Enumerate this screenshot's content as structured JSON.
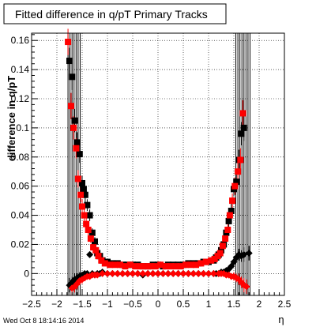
{
  "chart_data": {
    "type": "scatter",
    "title": "Fitted difference in q/pT  Primary Tracks",
    "xlabel": "η",
    "ylabel": "difference in q/pT",
    "timestamp": "Wed Oct  8 18:14:16 2014",
    "xlim": [
      -2.5,
      2.5
    ],
    "ylim": [
      -0.015,
      0.165
    ],
    "x_ticks": [
      -2.5,
      -2,
      -1.5,
      -1,
      -0.5,
      0,
      0.5,
      1,
      1.5,
      2,
      2.5
    ],
    "x_tick_labels": [
      "−2.5",
      "−2",
      "−1.5",
      "−1",
      "−0.5",
      "0",
      "0.5",
      "1",
      "1.5",
      "2",
      "2.5"
    ],
    "y_ticks": [
      0,
      0.02,
      0.04,
      0.06,
      0.08,
      0.1,
      0.12,
      0.14,
      0.16
    ],
    "y_tick_labels": [
      "0",
      "0.02",
      "0.04",
      "0.06",
      "0.08",
      "0.1",
      "0.12",
      "0.14",
      "0.16"
    ],
    "grid": true,
    "series": [
      {
        "color": "#000000",
        "marker": "square",
        "x": [
          -1.75,
          -1.7,
          -1.65,
          -1.6,
          -1.55,
          -1.5,
          -1.47,
          -1.44,
          -1.4,
          -1.35,
          -1.3,
          -1.25,
          -1.2,
          -1.15,
          -1.1,
          -1.0,
          -0.9,
          -0.8,
          -0.7,
          -0.6,
          -0.5,
          -0.4,
          -0.3,
          -0.2,
          -0.1,
          0.0,
          0.1,
          0.2,
          0.3,
          0.4,
          0.5,
          0.6,
          0.7,
          0.8,
          0.9,
          1.0,
          1.1,
          1.15,
          1.2,
          1.25,
          1.3,
          1.35,
          1.4,
          1.45,
          1.5,
          1.55,
          1.6,
          1.65,
          1.7
        ],
        "y": [
          0.146,
          0.135,
          0.105,
          0.09,
          0.082,
          0.062,
          0.058,
          0.054,
          0.047,
          0.04,
          0.028,
          0.022,
          0.014,
          0.012,
          0.009,
          0.008,
          0.007,
          0.007,
          0.006,
          0.006,
          0.006,
          0.006,
          0.005,
          0.005,
          0.006,
          0.006,
          0.005,
          0.006,
          0.006,
          0.006,
          0.006,
          0.007,
          0.007,
          0.007,
          0.008,
          0.008,
          0.009,
          0.011,
          0.013,
          0.016,
          0.02,
          0.028,
          0.036,
          0.043,
          0.058,
          0.063,
          0.078,
          0.096,
          0.1
        ],
        "errors": [
          0.009,
          0.009,
          0.008,
          0.007,
          0.006,
          0.005,
          0.005,
          0.005,
          0.004,
          0.004,
          0.003,
          0.003,
          0.002,
          0.002,
          0.0015,
          0.001,
          0.001,
          0.001,
          0.001,
          0.001,
          0.001,
          0.001,
          0.001,
          0.001,
          0.001,
          0.001,
          0.001,
          0.001,
          0.001,
          0.001,
          0.001,
          0.001,
          0.001,
          0.001,
          0.001,
          0.001,
          0.0015,
          0.002,
          0.002,
          0.003,
          0.003,
          0.004,
          0.004,
          0.005,
          0.005,
          0.006,
          0.007,
          0.008,
          0.009
        ]
      },
      {
        "color": "#ff0000",
        "marker": "square",
        "x": [
          -1.78,
          -1.72,
          -1.67,
          -1.62,
          -1.58,
          -1.53,
          -1.5,
          -1.46,
          -1.42,
          -1.38,
          -1.33,
          -1.28,
          -1.23,
          -1.18,
          -1.12,
          -1.05,
          -0.95,
          -0.85,
          -0.75,
          -0.65,
          -0.55,
          -0.45,
          -0.35,
          -0.25,
          -0.15,
          -0.05,
          0.05,
          0.15,
          0.25,
          0.35,
          0.45,
          0.55,
          0.65,
          0.75,
          0.85,
          0.95,
          1.05,
          1.12,
          1.18,
          1.23,
          1.28,
          1.33,
          1.38,
          1.42,
          1.47,
          1.52,
          1.58,
          1.63,
          1.68
        ],
        "y": [
          0.159,
          0.115,
          0.1,
          0.086,
          0.065,
          0.054,
          0.046,
          0.04,
          0.034,
          0.03,
          0.024,
          0.018,
          0.016,
          0.012,
          0.009,
          0.007,
          0.006,
          0.006,
          0.006,
          0.005,
          0.006,
          0.005,
          0.005,
          0.005,
          0.005,
          0.005,
          0.006,
          0.005,
          0.005,
          0.005,
          0.005,
          0.006,
          0.006,
          0.006,
          0.007,
          0.008,
          0.009,
          0.01,
          0.012,
          0.014,
          0.019,
          0.024,
          0.03,
          0.04,
          0.05,
          0.06,
          0.07,
          0.078,
          0.11
        ],
        "errors": [
          0.009,
          0.009,
          0.008,
          0.007,
          0.006,
          0.005,
          0.005,
          0.005,
          0.004,
          0.004,
          0.003,
          0.003,
          0.002,
          0.002,
          0.0015,
          0.001,
          0.001,
          0.001,
          0.001,
          0.001,
          0.001,
          0.001,
          0.001,
          0.001,
          0.001,
          0.001,
          0.001,
          0.001,
          0.001,
          0.001,
          0.001,
          0.001,
          0.001,
          0.001,
          0.001,
          0.001,
          0.0015,
          0.002,
          0.002,
          0.003,
          0.003,
          0.004,
          0.004,
          0.005,
          0.005,
          0.006,
          0.007,
          0.008,
          0.009
        ]
      },
      {
        "color": "#000000",
        "marker": "diamond",
        "x": [
          -1.75,
          -1.7,
          -1.65,
          -1.6,
          -1.55,
          -1.5,
          -1.45,
          -1.4,
          -1.35,
          -1.3,
          -1.25,
          -1.2,
          -1.15,
          -1.1,
          -1.0,
          -0.9,
          -0.8,
          -0.7,
          -0.6,
          -0.5,
          -0.4,
          -0.3,
          -0.2,
          -0.1,
          0.0,
          0.1,
          0.2,
          0.3,
          0.4,
          0.5,
          0.6,
          0.7,
          0.8,
          0.9,
          1.0,
          1.1,
          1.15,
          1.2,
          1.25,
          1.3,
          1.35,
          1.4,
          1.45,
          1.5,
          1.55,
          1.6,
          1.65,
          1.7,
          1.8
        ],
        "y": [
          -0.008,
          -0.006,
          -0.004,
          -0.003,
          -0.002,
          -0.001,
          0.0,
          0.0,
          0.013,
          0.0,
          -0.001,
          0.0,
          0.0,
          0.001,
          0.0,
          0.0,
          0.0,
          0.0,
          0.0,
          0.0,
          0.0,
          -0.001,
          0.0,
          0.0,
          0.0,
          0.0,
          0.0,
          0.0,
          0.0,
          0.0,
          0.0,
          0.0,
          0.0,
          0.0,
          0.0,
          0.0,
          0.0,
          0.0,
          0.001,
          0.001,
          0.002,
          0.003,
          0.005,
          0.008,
          0.011,
          0.013,
          0.012,
          0.013,
          0.014
        ],
        "errors": [
          0.005,
          0.004,
          0.004,
          0.003,
          0.003,
          0.002,
          0.002,
          0.002,
          0.002,
          0.001,
          0.001,
          0.001,
          0.001,
          0.001,
          0.001,
          0.001,
          0.001,
          0.001,
          0.001,
          0.001,
          0.001,
          0.001,
          0.001,
          0.001,
          0.001,
          0.001,
          0.001,
          0.001,
          0.001,
          0.001,
          0.001,
          0.001,
          0.001,
          0.001,
          0.001,
          0.001,
          0.001,
          0.001,
          0.001,
          0.001,
          0.002,
          0.002,
          0.002,
          0.003,
          0.003,
          0.004,
          0.004,
          0.005,
          0.005
        ]
      },
      {
        "color": "#ff0000",
        "marker": "diamond",
        "x": [
          -1.7,
          -1.65,
          -1.6,
          -1.55,
          -1.5,
          -1.45,
          -1.4,
          -1.35,
          -1.3,
          -1.25,
          -1.2,
          -1.1,
          -1.0,
          -0.9,
          -0.8,
          -0.7,
          -0.6,
          -0.5,
          -0.4,
          -0.3,
          -0.2,
          -0.1,
          0.0,
          0.1,
          0.2,
          0.3,
          0.4,
          0.5,
          0.6,
          0.7,
          0.8,
          0.9,
          1.0,
          1.1,
          1.2,
          1.25,
          1.3,
          1.35,
          1.4,
          1.45,
          1.5,
          1.55,
          1.6,
          1.65,
          1.7,
          1.75
        ],
        "y": [
          -0.01,
          -0.009,
          -0.007,
          -0.005,
          -0.004,
          -0.003,
          -0.002,
          -0.002,
          -0.001,
          -0.001,
          -0.001,
          0.0,
          0.0,
          0.0,
          0.0,
          0.0,
          0.0,
          0.0,
          0.0,
          0.0,
          0.0,
          0.0,
          0.0,
          0.0,
          0.0,
          0.0,
          0.0,
          0.0,
          0.0,
          0.0,
          0.0,
          0.0,
          0.0,
          0.0,
          0.0,
          0.0,
          0.0,
          -0.001,
          -0.001,
          -0.002,
          -0.002,
          -0.003,
          -0.004,
          -0.006,
          -0.008,
          -0.009
        ],
        "errors": [
          0.005,
          0.004,
          0.004,
          0.003,
          0.003,
          0.002,
          0.002,
          0.002,
          0.002,
          0.001,
          0.001,
          0.001,
          0.001,
          0.001,
          0.001,
          0.001,
          0.001,
          0.001,
          0.001,
          0.001,
          0.001,
          0.001,
          0.001,
          0.001,
          0.001,
          0.001,
          0.001,
          0.001,
          0.001,
          0.001,
          0.001,
          0.001,
          0.001,
          0.001,
          0.001,
          0.001,
          0.001,
          0.002,
          0.002,
          0.002,
          0.003,
          0.003,
          0.004,
          0.004,
          0.005,
          0.005
        ]
      }
    ],
    "vertical_error_lines": {
      "color": "#000000",
      "x": [
        -1.78,
        -1.74,
        -1.7,
        -1.66,
        -1.62,
        -1.58,
        -1.54,
        1.54,
        1.58,
        1.62,
        1.66,
        1.7,
        1.74,
        1.78,
        1.82
      ],
      "y_low": -0.015,
      "y_high": 0.165
    }
  }
}
